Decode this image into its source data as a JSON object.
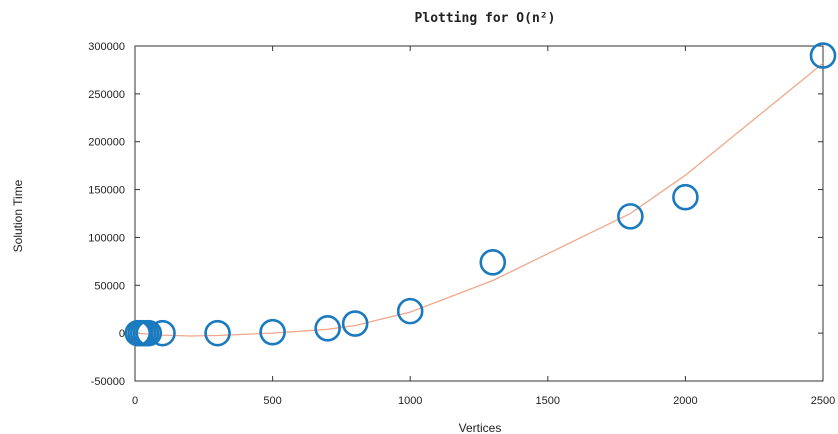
{
  "chart_data": {
    "type": "scatter",
    "title": "Plotting for O(n²)",
    "xlabel": "Vertices",
    "ylabel": "Solution Time",
    "xlim": [
      0,
      2500
    ],
    "ylim": [
      -50000,
      300000
    ],
    "xticks": [
      "0",
      "500",
      "1000",
      "1500",
      "2000",
      "2500"
    ],
    "yticks": [
      "-50000",
      "0",
      "50000",
      "100000",
      "150000",
      "200000",
      "250000",
      "300000"
    ],
    "grid": false,
    "series": [
      {
        "type": "scatter",
        "color": "#1a7abf",
        "x": [
          10,
          20,
          30,
          40,
          50,
          100,
          300,
          500,
          700,
          800,
          1000,
          1300,
          1800,
          2000,
          2500
        ],
        "y": [
          0,
          0,
          0,
          0,
          0,
          0,
          0,
          1000,
          5000,
          10000,
          23000,
          74000,
          122000,
          142000,
          290000
        ]
      },
      {
        "type": "line",
        "color": "#f0a88a",
        "x": [
          0,
          100,
          200,
          300,
          500,
          700,
          800,
          1000,
          1300,
          1800,
          2000,
          2500
        ],
        "y": [
          0,
          -2000,
          -3000,
          -2500,
          0,
          4000,
          8000,
          22000,
          55000,
          125000,
          165000,
          282000
        ]
      }
    ]
  }
}
